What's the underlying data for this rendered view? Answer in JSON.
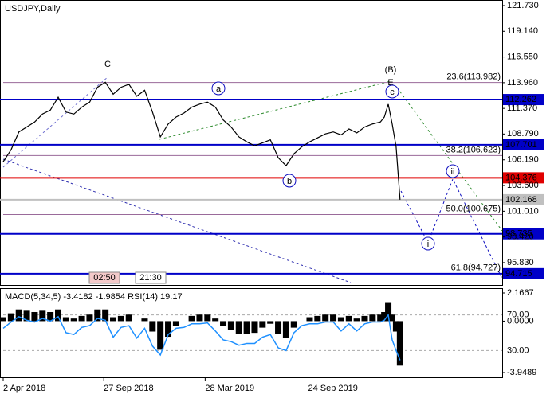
{
  "chart_data": [
    {
      "type": "line",
      "title": "USDJPY,Daily",
      "color": "#000000",
      "x": [
        0,
        2,
        4,
        6,
        8,
        10,
        12,
        14,
        16,
        18,
        20,
        22,
        24,
        26,
        28,
        30,
        32,
        34,
        36,
        38,
        40,
        42,
        44,
        46,
        48,
        50,
        52,
        54,
        56,
        58,
        60,
        62,
        64,
        66,
        68,
        70,
        72,
        74,
        76,
        78,
        80,
        82,
        84,
        86,
        88,
        90,
        92,
        94,
        96,
        97,
        98,
        99,
        100,
        101
      ],
      "values": [
        106.0,
        107.2,
        109.0,
        109.5,
        110.0,
        110.8,
        111.2,
        112.5,
        111.0,
        110.8,
        111.5,
        112.0,
        113.5,
        114.0,
        112.8,
        113.5,
        113.8,
        112.6,
        113.2,
        111.0,
        108.5,
        109.8,
        110.5,
        110.9,
        111.5,
        111.8,
        112.0,
        111.5,
        110.2,
        109.5,
        108.5,
        108.0,
        107.6,
        107.9,
        108.2,
        106.4,
        105.6,
        106.8,
        107.5,
        108.0,
        108.4,
        108.8,
        109.0,
        108.7,
        109.3,
        108.9,
        109.5,
        109.8,
        110.0,
        110.5,
        111.8,
        109.8,
        107.5,
        102.168
      ],
      "xlim": [
        0,
        127
      ],
      "xticks": [
        {
          "value": 0,
          "label": "2 Apr 2018"
        },
        {
          "value": 25.6,
          "label": "27 Sep 2018"
        },
        {
          "value": 51.4,
          "label": "28 Mar 2019"
        },
        {
          "value": 77.6,
          "label": "24 Sep 2019"
        }
      ],
      "ylim": [
        93.58,
        122.29
      ],
      "yticks": [
        {
          "value": 121.73,
          "label": "121.730"
        },
        {
          "value": 119.14,
          "label": "119.140"
        },
        {
          "value": 116.55,
          "label": "116.550"
        },
        {
          "value": 113.96,
          "label": "113.960"
        },
        {
          "value": 111.37,
          "label": "111.370"
        },
        {
          "value": 108.79,
          "label": "108.790"
        },
        {
          "value": 106.19,
          "label": "106.190"
        },
        {
          "value": 103.6,
          "label": "103.600"
        },
        {
          "value": 101.01,
          "label": "101.010"
        },
        {
          "value": 98.42,
          "label": "98.420"
        },
        {
          "value": 95.83,
          "label": "95.830"
        }
      ],
      "levels": [
        {
          "value": 112.262,
          "color": "#0000c8"
        },
        {
          "value": 107.701,
          "color": "#0000c8"
        },
        {
          "value": 104.376,
          "color": "#e00000"
        },
        {
          "value": 102.168,
          "color": "#c0c0c0"
        },
        {
          "value": 98.735,
          "color": "#0000c8"
        },
        {
          "value": 94.715,
          "color": "#0000c8"
        }
      ],
      "fib": [
        {
          "value": 113.982,
          "label": "23.6(113.982)"
        },
        {
          "value": 106.623,
          "label": "38.2(106.623)"
        },
        {
          "value": 100.675,
          "label": "50.0(100.675)"
        },
        {
          "value": 94.727,
          "label": "61.8(94.727)"
        }
      ],
      "waves": [
        {
          "text": "C",
          "color": "#c0392b"
        },
        {
          "text": "(B)",
          "color": "#2e8b2e"
        },
        {
          "text": "E",
          "color": "#c0392b"
        },
        {
          "text": "a",
          "color": "#1010c0"
        },
        {
          "text": "b",
          "color": "#1010c0"
        },
        {
          "text": "c",
          "color": "#1010c0"
        },
        {
          "text": "ii",
          "color": "#1010c0"
        },
        {
          "text": "i",
          "color": "#1010c0"
        }
      ],
      "times": [
        "02:50",
        "21:30"
      ]
    },
    {
      "type": "macd",
      "title": "MACD(5,34,5) -3.4182 -1.9854 RSI(14) 19.17",
      "color": "#000000",
      "values": [
        0.3,
        0.6,
        0.9,
        0.8,
        0.7,
        0.8,
        0.7,
        0.9,
        0.3,
        0.2,
        0.4,
        0.5,
        0.9,
        0.9,
        0.3,
        0.4,
        0.5,
        0.0,
        0.2,
        -0.8,
        -2.2,
        -1.2,
        -0.4,
        0.0,
        0.4,
        0.5,
        0.5,
        0.2,
        -0.4,
        -0.7,
        -1.0,
        -1.0,
        -0.9,
        -0.5,
        -0.2,
        -1.0,
        -1.3,
        -0.5,
        0.0,
        0.3,
        0.4,
        0.5,
        0.5,
        0.3,
        0.4,
        0.2,
        0.4,
        0.5,
        0.5,
        0.7,
        1.4,
        0.5,
        -0.8,
        -3.4182
      ],
      "ylim": [
        -4.316,
        2.534
      ],
      "yticks": [
        {
          "value": 2.1667,
          "label": "2.1667"
        },
        {
          "value": 0,
          "label": "0.0000"
        },
        {
          "value": -3.9489,
          "label": "-3.9489"
        }
      ],
      "series": [
        {
          "color": "#1e90ff",
          "axis": "y2",
          "values": [
            55,
            62,
            68,
            64,
            62,
            66,
            63,
            68,
            50,
            48,
            56,
            58,
            66,
            64,
            45,
            56,
            58,
            44,
            55,
            35,
            25,
            48,
            55,
            56,
            60,
            60,
            61,
            52,
            42,
            40,
            36,
            38,
            38,
            45,
            48,
            33,
            30,
            50,
            58,
            60,
            60,
            62,
            62,
            52,
            60,
            52,
            60,
            62,
            62,
            64,
            70,
            42,
            30,
            19.17
          ]
        }
      ],
      "y2lim": [
        0,
        100
      ],
      "y2ticks": [
        {
          "value": 70,
          "label": "70.00"
        },
        {
          "value": 30,
          "label": "30.00"
        }
      ]
    }
  ]
}
